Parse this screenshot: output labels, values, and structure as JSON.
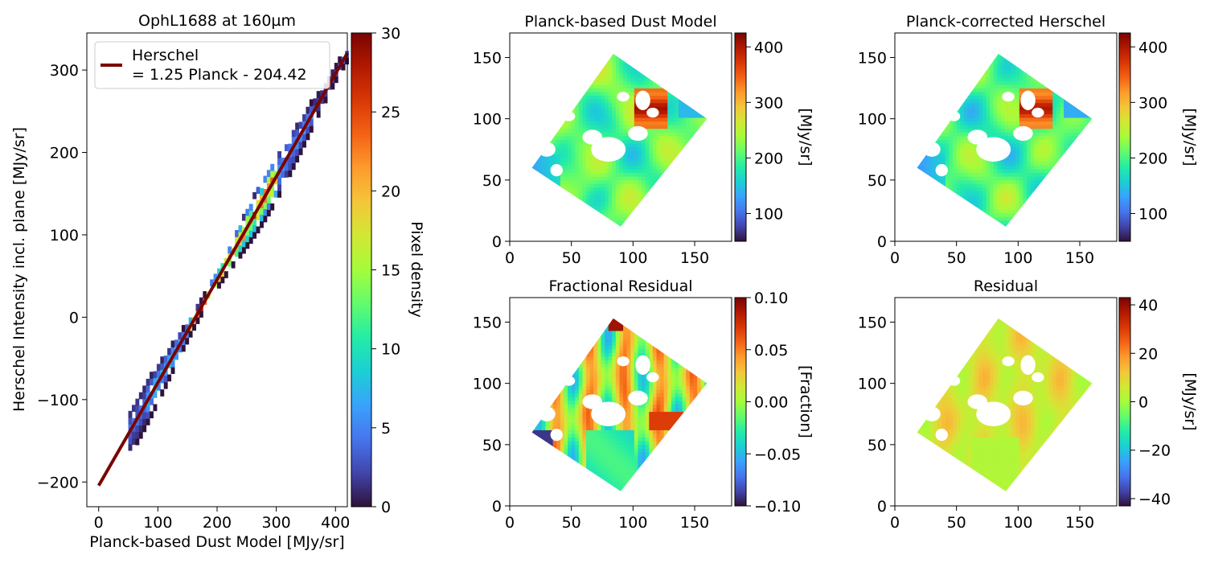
{
  "colormap": [
    "#30123b",
    "#4145ab",
    "#4675ed",
    "#39a2fc",
    "#1bcfd4",
    "#24eca6",
    "#61fc6c",
    "#a4fc3b",
    "#d1e834",
    "#f3c63a",
    "#fe9b2d",
    "#f36315",
    "#d93806",
    "#b11901",
    "#7a0402"
  ],
  "fit_color": "#7a0402",
  "chart_data": [
    {
      "type": "heatmap",
      "title": "OphL1688 at 160µm",
      "xlabel": "Planck-based Dust Model [MJy/sr]",
      "ylabel": "Herschel Intensity incl. plane [MJy/sr]",
      "xlim": [
        -20,
        420
      ],
      "ylim": [
        -230,
        345
      ],
      "xticks": [
        0,
        100,
        200,
        300,
        400
      ],
      "yticks": [
        -200,
        -100,
        0,
        100,
        200,
        300
      ],
      "colorbar": {
        "label": "Pixel density",
        "range": [
          0,
          30
        ],
        "ticks": [
          0,
          5,
          10,
          15,
          20,
          25,
          30
        ]
      },
      "fit": {
        "slope": 1.25,
        "intercept": -204.42,
        "x_range": [
          0,
          420
        ]
      },
      "legend": {
        "line1": "Herschel",
        "line2": "= 1.25 Planck - 204.42",
        "placement": "upper-left"
      }
    },
    {
      "type": "heatmap",
      "title": "Planck-based Dust Model",
      "xlim": [
        0,
        180
      ],
      "ylim": [
        0,
        170
      ],
      "xticks": [
        0,
        50,
        100,
        150
      ],
      "yticks": [
        0,
        50,
        100,
        150
      ],
      "colorbar": {
        "label": "[MJy/sr]",
        "range": [
          50,
          425
        ],
        "ticks": [
          100,
          200,
          300,
          400
        ]
      }
    },
    {
      "type": "heatmap",
      "title": "Planck-corrected Herschel",
      "xlim": [
        0,
        180
      ],
      "ylim": [
        0,
        170
      ],
      "xticks": [
        0,
        50,
        100,
        150
      ],
      "yticks": [
        0,
        50,
        100,
        150
      ],
      "colorbar": {
        "label": "[MJy/sr]",
        "range": [
          50,
          425
        ],
        "ticks": [
          100,
          200,
          300,
          400
        ]
      }
    },
    {
      "type": "heatmap",
      "title": "Fractional Residual",
      "xlim": [
        0,
        180
      ],
      "ylim": [
        0,
        170
      ],
      "xticks": [
        0,
        50,
        100,
        150
      ],
      "yticks": [
        0,
        50,
        100,
        150
      ],
      "colorbar": {
        "label": "[Fraction]",
        "range": [
          -0.1,
          0.1
        ],
        "ticks": [
          "−0.10",
          "−0.05",
          "0.00",
          "0.05",
          "0.10"
        ]
      }
    },
    {
      "type": "heatmap",
      "title": "Residual",
      "xlim": [
        0,
        180
      ],
      "ylim": [
        0,
        170
      ],
      "xticks": [
        0,
        50,
        100,
        150
      ],
      "yticks": [
        0,
        50,
        100,
        150
      ],
      "colorbar": {
        "label": "[MJy/sr]",
        "range": [
          -43,
          43
        ],
        "ticks": [
          "−40",
          "−20",
          "0",
          "20",
          "40"
        ]
      }
    }
  ]
}
